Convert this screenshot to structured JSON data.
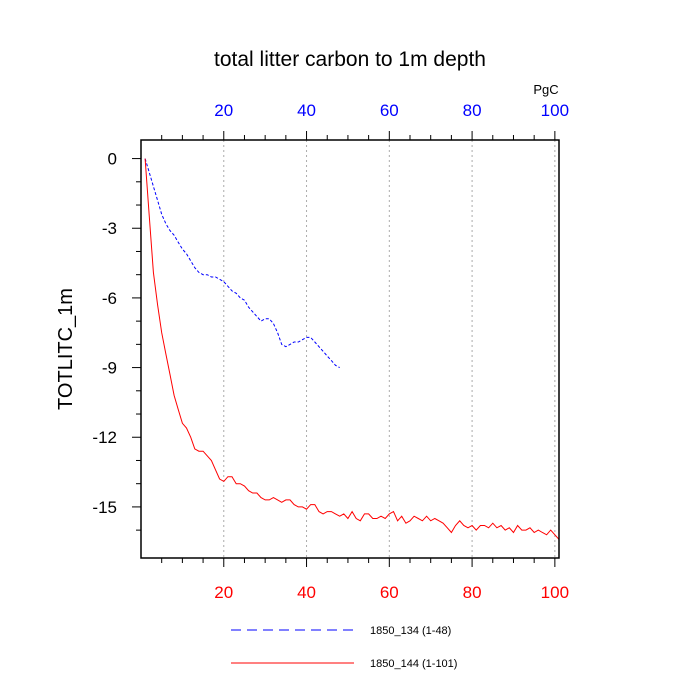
{
  "chart_data": {
    "type": "line",
    "title": "total litter carbon to 1m depth",
    "ylabel": "TOTLITC_1m",
    "top_axis_unit": "PgC",
    "xlim": [
      0,
      101
    ],
    "ylim": [
      -17.2,
      0.8
    ],
    "x_ticks": [
      "20",
      "40",
      "60",
      "80",
      "100"
    ],
    "y_ticks": [
      "0",
      "-3",
      "-6",
      "-9",
      "-12",
      "-15"
    ],
    "grid": "vertical dotted",
    "legend_position": "bottom",
    "colors": {
      "bottom_axis": "#ff0000",
      "top_axis": "#0000ff"
    },
    "series": [
      {
        "name": "1850_134 (1-48)",
        "color": "#0000ff",
        "dash": "dashed",
        "x": [
          1,
          2,
          3,
          4,
          5,
          6,
          7,
          8,
          9,
          10,
          11,
          12,
          13,
          14,
          15,
          16,
          17,
          18,
          19,
          20,
          21,
          22,
          23,
          24,
          25,
          26,
          27,
          28,
          29,
          30,
          31,
          32,
          33,
          34,
          35,
          36,
          37,
          38,
          39,
          40,
          41,
          42,
          43,
          44,
          45,
          46,
          47,
          48
        ],
        "values": [
          0,
          -0.6,
          -1.2,
          -1.8,
          -2.4,
          -2.8,
          -3.1,
          -3.3,
          -3.6,
          -3.9,
          -4.1,
          -4.4,
          -4.7,
          -4.9,
          -5.0,
          -5.0,
          -5.1,
          -5.1,
          -5.2,
          -5.3,
          -5.5,
          -5.7,
          -5.8,
          -6.0,
          -6.1,
          -6.4,
          -6.6,
          -6.8,
          -7.0,
          -6.9,
          -6.9,
          -7.1,
          -7.5,
          -8.0,
          -8.1,
          -8.0,
          -7.9,
          -7.9,
          -7.8,
          -7.7,
          -7.7,
          -7.9,
          -8.1,
          -8.3,
          -8.5,
          -8.7,
          -8.9,
          -9.0
        ]
      },
      {
        "name": "1850_144 (1-101)",
        "color": "#ff0000",
        "dash": "solid",
        "x": [
          1,
          2,
          3,
          4,
          5,
          6,
          7,
          8,
          9,
          10,
          11,
          12,
          13,
          14,
          15,
          16,
          17,
          18,
          19,
          20,
          21,
          22,
          23,
          24,
          25,
          26,
          27,
          28,
          29,
          30,
          31,
          32,
          33,
          34,
          35,
          36,
          37,
          38,
          39,
          40,
          41,
          42,
          43,
          44,
          45,
          46,
          47,
          48,
          49,
          50,
          51,
          52,
          53,
          54,
          55,
          56,
          57,
          58,
          59,
          60,
          61,
          62,
          63,
          64,
          65,
          66,
          67,
          68,
          69,
          70,
          71,
          72,
          73,
          74,
          75,
          76,
          77,
          78,
          79,
          80,
          81,
          82,
          83,
          84,
          85,
          86,
          87,
          88,
          89,
          90,
          91,
          92,
          93,
          94,
          95,
          96,
          97,
          98,
          99,
          100,
          101
        ],
        "values": [
          0,
          -2.5,
          -4.9,
          -6.3,
          -7.5,
          -8.4,
          -9.3,
          -10.2,
          -10.8,
          -11.4,
          -11.6,
          -12.0,
          -12.5,
          -12.6,
          -12.6,
          -12.8,
          -13.0,
          -13.4,
          -13.8,
          -13.9,
          -13.7,
          -13.7,
          -14.0,
          -14.0,
          -14.1,
          -14.3,
          -14.4,
          -14.4,
          -14.6,
          -14.7,
          -14.7,
          -14.6,
          -14.7,
          -14.8,
          -14.7,
          -14.7,
          -14.9,
          -15.0,
          -15.0,
          -15.1,
          -14.9,
          -14.9,
          -15.2,
          -15.3,
          -15.2,
          -15.2,
          -15.3,
          -15.4,
          -15.3,
          -15.5,
          -15.2,
          -15.5,
          -15.6,
          -15.3,
          -15.3,
          -15.5,
          -15.5,
          -15.4,
          -15.5,
          -15.3,
          -15.2,
          -15.6,
          -15.4,
          -15.7,
          -15.6,
          -15.4,
          -15.5,
          -15.6,
          -15.4,
          -15.6,
          -15.5,
          -15.6,
          -15.7,
          -15.9,
          -16.1,
          -15.8,
          -15.6,
          -15.8,
          -15.9,
          -15.8,
          -16.0,
          -15.8,
          -15.8,
          -15.9,
          -15.7,
          -15.9,
          -15.8,
          -16.0,
          -15.9,
          -16.1,
          -15.8,
          -16.0,
          -16.0,
          -15.9,
          -16.1,
          -16.0,
          -16.1,
          -16.2,
          -16.0,
          -16.2,
          -16.4
        ]
      }
    ]
  }
}
